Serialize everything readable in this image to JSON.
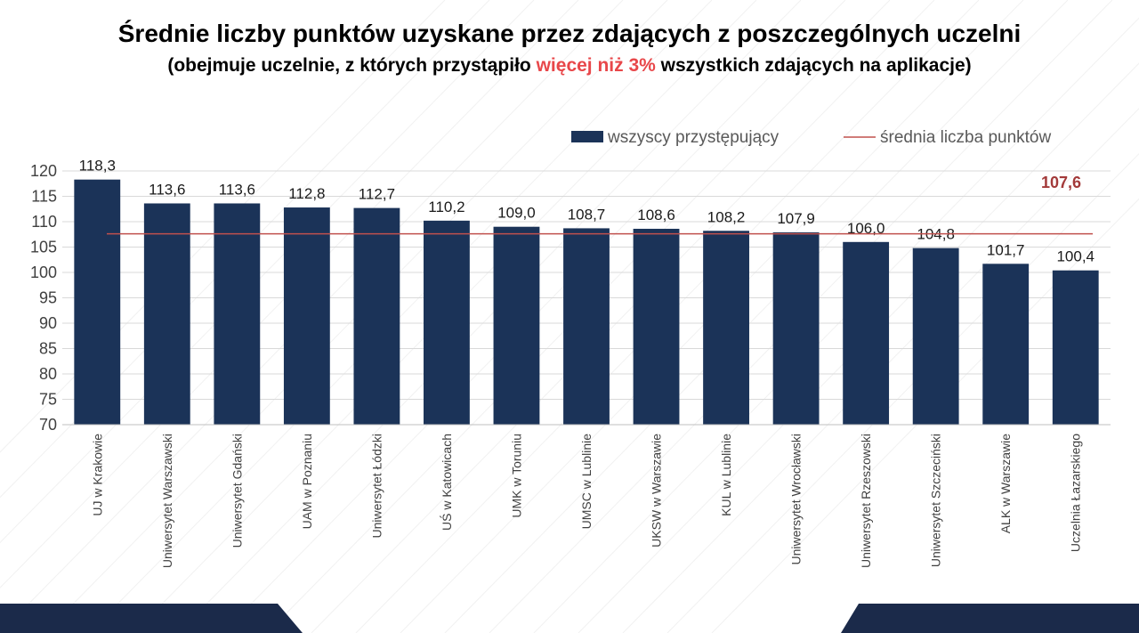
{
  "title": "Średnie liczby punktów uzyskane przez zdających z poszczególnych uczelni",
  "subtitle": {
    "before": "(obejmuje uczelnie, z których przystąpiło ",
    "highlight": "więcej niż 3%",
    "after": " wszystkich zdających na aplikacje)"
  },
  "colors": {
    "bar": "#1b3358",
    "avg_line": "#c0504d",
    "avg_label": "#a33a3a",
    "highlight": "#e8474a"
  },
  "chart_data": {
    "type": "bar",
    "categories": [
      "UJ w Krakowie",
      "Uniwersytet Warszawski",
      "Uniwersytet Gdański",
      "UAM w Poznaniu",
      "Uniwersytet Łódzki",
      "UŚ w Katowicach",
      "UMK w Toruniu",
      "UMSC w Lublinie",
      "UKSW w Warszawie",
      "KUL w Lublinie",
      "Uniwersytet Wrocławski",
      "Uniwersytet Rzeszowski",
      "Uniwersytet Szczeciński",
      "ALK w Warszawie",
      "Uczelnia Łazarskiego"
    ],
    "series": [
      {
        "name": "wszyscy przystępujący",
        "values": [
          118.3,
          113.6,
          113.6,
          112.8,
          112.7,
          110.2,
          109.0,
          108.7,
          108.6,
          108.2,
          107.9,
          106.0,
          104.8,
          101.7,
          100.4
        ],
        "labels": [
          "118,3",
          "113,6",
          "113,6",
          "112,8",
          "112,7",
          "110,2",
          "109,0",
          "108,7",
          "108,6",
          "108,2",
          "107,9",
          "106,0",
          "104,8",
          "101,7",
          "100,4"
        ]
      }
    ],
    "reference_line": {
      "name": "średnia liczba punktów",
      "value": 107.6,
      "label": "107,6"
    },
    "yticks": [
      70,
      75,
      80,
      85,
      90,
      95,
      100,
      105,
      110,
      115,
      120
    ],
    "ylim": [
      70,
      120
    ],
    "grid": true,
    "legend_position": "top-right"
  }
}
